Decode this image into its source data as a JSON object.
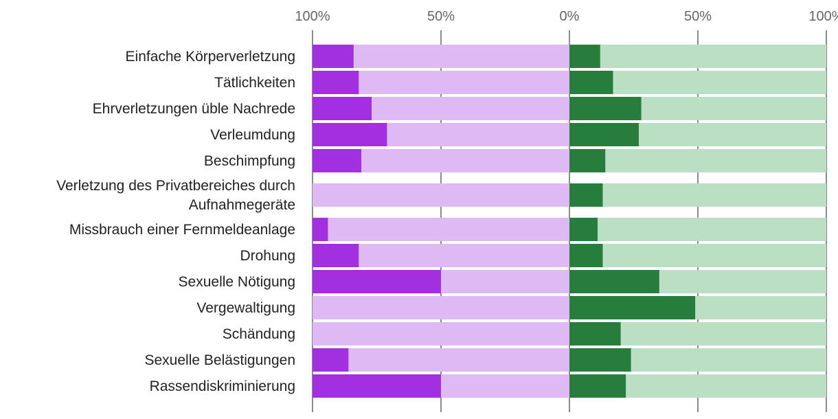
{
  "chart_data": {
    "type": "bar",
    "orientation": "horizontal-diverging",
    "ticks": [
      "100%",
      "50%",
      "0%",
      "50%",
      "100%"
    ],
    "tick_values": [
      -100,
      -50,
      0,
      50,
      100
    ],
    "xlim": [
      -100,
      100
    ],
    "categories": [
      [
        "Einfache Körperverletzung"
      ],
      [
        "Tätlichkeiten"
      ],
      [
        "Ehrverletzungen üble Nachrede"
      ],
      [
        "Verleumdung"
      ],
      [
        "Beschimpfung"
      ],
      [
        "Verletzung des Privatbereiches durch",
        "Aufnahmegeräte"
      ],
      [
        "Missbrauch einer Fernmeldeanlage"
      ],
      [
        "Drohung"
      ],
      [
        "Sexuelle Nötigung"
      ],
      [
        "Vergewaltigung"
      ],
      [
        "Schändung"
      ],
      [
        "Sexuelle Belästigungen"
      ],
      [
        "Rassendiskriminierung"
      ]
    ],
    "series": [
      {
        "name": "left-light",
        "side": "left",
        "color": "#dfb9f3",
        "values": [
          84,
          82,
          77,
          71,
          81,
          100,
          94,
          82,
          50,
          100,
          100,
          86,
          50
        ]
      },
      {
        "name": "left-dark",
        "side": "left",
        "color": "#a22fe0",
        "values": [
          16,
          18,
          23,
          29,
          19,
          0,
          6,
          18,
          50,
          0,
          0,
          14,
          50
        ]
      },
      {
        "name": "right-dark",
        "side": "right",
        "color": "#267d3c",
        "values": [
          12,
          17,
          28,
          27,
          14,
          13,
          11,
          13,
          35,
          49,
          20,
          24,
          22
        ]
      },
      {
        "name": "right-light",
        "side": "right",
        "color": "#badfc3",
        "values": [
          88,
          83,
          72,
          73,
          86,
          87,
          89,
          87,
          65,
          51,
          80,
          76,
          78
        ]
      }
    ]
  }
}
